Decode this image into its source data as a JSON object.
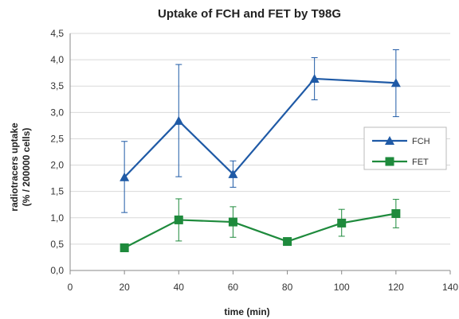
{
  "chart_data": {
    "type": "line",
    "title": "Uptake of FCH and FET by T98G",
    "xlabel": "time (min)",
    "ylabel_line1": "radiotracers uptake",
    "ylabel_line2": "(% / 200000 cells)",
    "xlim": [
      0,
      140
    ],
    "ylim": [
      0,
      4.5
    ],
    "x_ticks": [
      "0",
      "20",
      "40",
      "60",
      "80",
      "100",
      "120",
      "140"
    ],
    "y_ticks": [
      "0,0",
      "0,5",
      "1,0",
      "1,5",
      "2,0",
      "2,5",
      "3,0",
      "3,5",
      "4,0",
      "4,5"
    ],
    "grid": "horizontal",
    "legend_position": "right",
    "series": [
      {
        "name": "FCH",
        "color": "#1f5aa6",
        "marker": "triangle",
        "x": [
          20,
          40,
          60,
          90,
          120
        ],
        "y": [
          1.77,
          2.84,
          1.83,
          3.64,
          3.56
        ],
        "err_low": [
          1.1,
          1.78,
          1.58,
          3.24,
          2.92
        ],
        "err_high": [
          2.45,
          3.91,
          2.08,
          4.04,
          4.19
        ]
      },
      {
        "name": "FET",
        "color": "#1e8a3c",
        "marker": "square",
        "x": [
          20,
          40,
          60,
          80,
          100,
          120
        ],
        "y": [
          0.43,
          0.96,
          0.92,
          0.55,
          0.9,
          1.08
        ],
        "err_low": [
          0.36,
          0.56,
          0.63,
          0.49,
          0.65,
          0.81
        ],
        "err_high": [
          0.5,
          1.36,
          1.21,
          0.61,
          1.16,
          1.35
        ]
      }
    ]
  }
}
